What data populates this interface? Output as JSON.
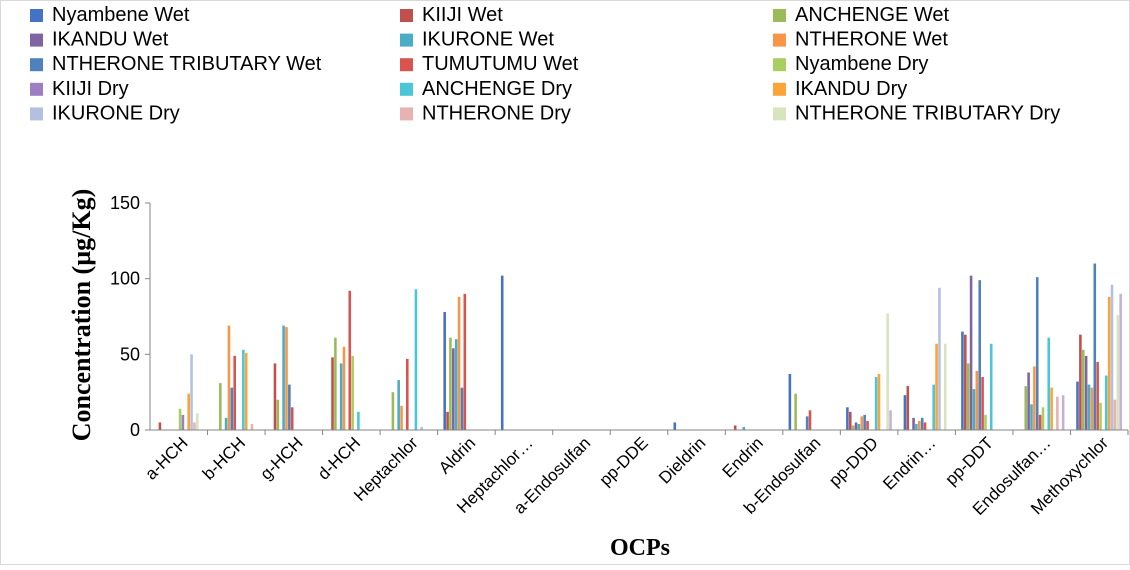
{
  "chart_data": {
    "type": "bar",
    "xlabel": "OCPs",
    "ylabel": "Concentration (µg/Kg)",
    "ylim": [
      0,
      150
    ],
    "yticks": [
      0,
      50,
      100,
      150
    ],
    "grid": false,
    "legend_position": "top",
    "categories": [
      "a-HCH",
      "b-HCH",
      "g-HCH",
      "d-HCH",
      "Heptachlor",
      "Aldrin",
      "Heptachlor…",
      "a-Endosulfan",
      "pp-DDE",
      "Dieldrin",
      "Endrin",
      "b-Endosulfan",
      "pp-DDD",
      "Endrin…",
      "pp-DDT",
      "Endosulfan…",
      "Methoxychlor"
    ],
    "series": [
      {
        "name": "Nyambene Wet",
        "color": "#4472C4",
        "values": [
          0,
          0,
          0,
          0,
          0,
          78,
          102,
          0,
          0,
          5,
          0,
          37,
          15,
          23,
          65,
          0,
          32
        ]
      },
      {
        "name": "KIIJI Wet",
        "color": "#C0504D",
        "values": [
          5,
          0,
          44,
          48,
          0,
          12,
          0,
          0,
          0,
          0,
          3,
          0,
          12,
          29,
          63,
          0,
          63
        ]
      },
      {
        "name": "ANCHENGE Wet",
        "color": "#9BBB59",
        "values": [
          0,
          31,
          20,
          61,
          25,
          61,
          0,
          0,
          0,
          0,
          0,
          24,
          3,
          0,
          44,
          29,
          53
        ]
      },
      {
        "name": "IKANDU Wet",
        "color": "#8064A2",
        "values": [
          0,
          0,
          0,
          0,
          0,
          54,
          0,
          0,
          0,
          0,
          0,
          0,
          5,
          8,
          102,
          38,
          49
        ]
      },
      {
        "name": "IKURONE Wet",
        "color": "#4BACC6",
        "values": [
          0,
          8,
          69,
          44,
          33,
          60,
          0,
          0,
          0,
          0,
          2,
          0,
          4,
          4,
          27,
          17,
          30
        ]
      },
      {
        "name": "NTHERONE Wet",
        "color": "#F79646",
        "values": [
          0,
          69,
          68,
          55,
          16,
          88,
          0,
          0,
          0,
          0,
          0,
          0,
          9,
          6,
          39,
          42,
          28
        ]
      },
      {
        "name": "NTHERONE TRIBUTARY Wet",
        "color": "#4F81BD",
        "values": [
          0,
          28,
          30,
          0,
          0,
          28,
          0,
          0,
          0,
          0,
          0,
          9,
          10,
          8,
          99,
          101,
          110
        ]
      },
      {
        "name": "TUMUTUMU Wet",
        "color": "#D9534F",
        "values": [
          0,
          49,
          15,
          92,
          47,
          90,
          0,
          0,
          0,
          0,
          0,
          13,
          6,
          5,
          35,
          10,
          45
        ]
      },
      {
        "name": "Nyambene  Dry",
        "color": "#A9CF62",
        "values": [
          14,
          0,
          0,
          49,
          0,
          0,
          0,
          0,
          0,
          0,
          0,
          0,
          0,
          0,
          10,
          15,
          18
        ]
      },
      {
        "name": "KIIJI Dry",
        "color": "#9C7FC2",
        "values": [
          10,
          0,
          0,
          0,
          0,
          0,
          0,
          0,
          0,
          0,
          0,
          0,
          0,
          0,
          0,
          0,
          0
        ]
      },
      {
        "name": "ANCHENGE Dry",
        "color": "#4BC6D8",
        "values": [
          0,
          53,
          0,
          12,
          93,
          0,
          0,
          0,
          0,
          0,
          0,
          0,
          35,
          30,
          57,
          61,
          36
        ]
      },
      {
        "name": "IKANDU Dry",
        "color": "#FAA43A",
        "values": [
          24,
          51,
          0,
          0,
          0,
          0,
          0,
          0,
          0,
          0,
          0,
          0,
          37,
          57,
          0,
          28,
          88
        ]
      },
      {
        "name": "IKURONE Dry",
        "color": "#B4C0E0",
        "values": [
          50,
          0,
          0,
          0,
          2,
          0,
          0,
          0,
          0,
          0,
          0,
          0,
          0,
          94,
          0,
          0,
          96
        ]
      },
      {
        "name": "NTHERONE Dry",
        "color": "#E6B2B2",
        "values": [
          5,
          4,
          0,
          0,
          0,
          0,
          0,
          0,
          0,
          0,
          0,
          0,
          0,
          0,
          0,
          22,
          20
        ]
      },
      {
        "name": "NTHERONE TRIBUTARY Dry",
        "color": "#D7E4BD",
        "values": [
          11,
          0,
          0,
          0,
          0,
          0,
          0,
          0,
          0,
          0,
          0,
          0,
          77,
          57,
          0,
          0,
          76
        ]
      },
      {
        "name": "",
        "color": "#C3B2D8",
        "values": [
          0,
          0,
          0,
          0,
          0,
          0,
          0,
          0,
          0,
          0,
          0,
          0,
          13,
          0,
          0,
          23,
          90
        ]
      }
    ]
  }
}
